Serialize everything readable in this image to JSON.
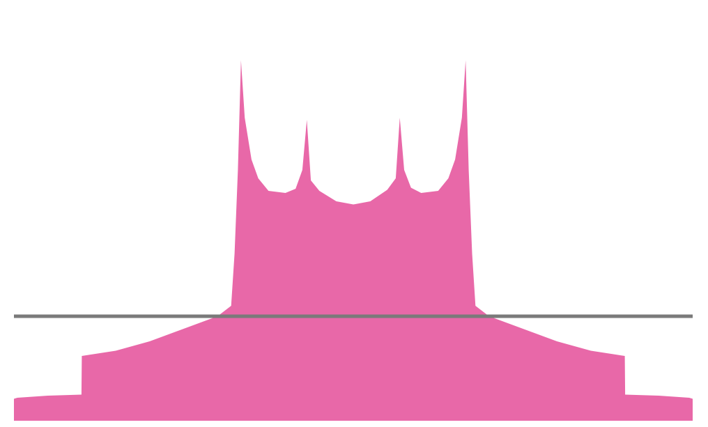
{
  "chart_data": {
    "type": "area",
    "title": "",
    "xlabel": "",
    "ylabel": "",
    "x_range": [
      -1.0,
      1.0
    ],
    "y_range": [
      -1.0,
      3.0
    ],
    "grid": false,
    "legend": "none",
    "fill_color": "#e868a8",
    "baseline_color": "#7a7a7a",
    "baseline_y": 0.0,
    "series": [
      {
        "values": [
          {
            "x": -1.0,
            "y": -0.79
          },
          {
            "x": -0.99,
            "y": -0.78
          },
          {
            "x": -0.9,
            "y": -0.76
          },
          {
            "x": -0.801,
            "y": -0.75
          },
          {
            "x": -0.8,
            "y": -0.38
          },
          {
            "x": -0.7,
            "y": -0.33
          },
          {
            "x": -0.6,
            "y": -0.24
          },
          {
            "x": -0.5,
            "y": -0.12
          },
          {
            "x": -0.4,
            "y": 0.0
          },
          {
            "x": -0.36,
            "y": 0.1
          },
          {
            "x": -0.35,
            "y": 0.6
          },
          {
            "x": -0.34,
            "y": 1.4
          },
          {
            "x": -0.331,
            "y": 2.45
          },
          {
            "x": -0.32,
            "y": 1.9
          },
          {
            "x": -0.3,
            "y": 1.5
          },
          {
            "x": -0.28,
            "y": 1.32
          },
          {
            "x": -0.25,
            "y": 1.2
          },
          {
            "x": -0.2,
            "y": 1.18
          },
          {
            "x": -0.17,
            "y": 1.22
          },
          {
            "x": -0.15,
            "y": 1.4
          },
          {
            "x": -0.137,
            "y": 1.88
          },
          {
            "x": -0.125,
            "y": 1.3
          },
          {
            "x": -0.1,
            "y": 1.2
          },
          {
            "x": -0.05,
            "y": 1.1
          },
          {
            "x": 0.0,
            "y": 1.07
          },
          {
            "x": 0.05,
            "y": 1.1
          },
          {
            "x": 0.1,
            "y": 1.21
          },
          {
            "x": 0.125,
            "y": 1.32
          },
          {
            "x": 0.137,
            "y": 1.9
          },
          {
            "x": 0.15,
            "y": 1.4
          },
          {
            "x": 0.17,
            "y": 1.23
          },
          {
            "x": 0.2,
            "y": 1.18
          },
          {
            "x": 0.25,
            "y": 1.2
          },
          {
            "x": 0.28,
            "y": 1.32
          },
          {
            "x": 0.3,
            "y": 1.5
          },
          {
            "x": 0.32,
            "y": 1.9
          },
          {
            "x": 0.331,
            "y": 2.45
          },
          {
            "x": 0.34,
            "y": 1.4
          },
          {
            "x": 0.35,
            "y": 0.6
          },
          {
            "x": 0.36,
            "y": 0.1
          },
          {
            "x": 0.4,
            "y": 0.0
          },
          {
            "x": 0.5,
            "y": -0.12
          },
          {
            "x": 0.6,
            "y": -0.24
          },
          {
            "x": 0.7,
            "y": -0.33
          },
          {
            "x": 0.8,
            "y": -0.38
          },
          {
            "x": 0.801,
            "y": -0.75
          },
          {
            "x": 0.9,
            "y": -0.76
          },
          {
            "x": 0.99,
            "y": -0.78
          },
          {
            "x": 1.0,
            "y": -0.79
          }
        ]
      }
    ]
  }
}
